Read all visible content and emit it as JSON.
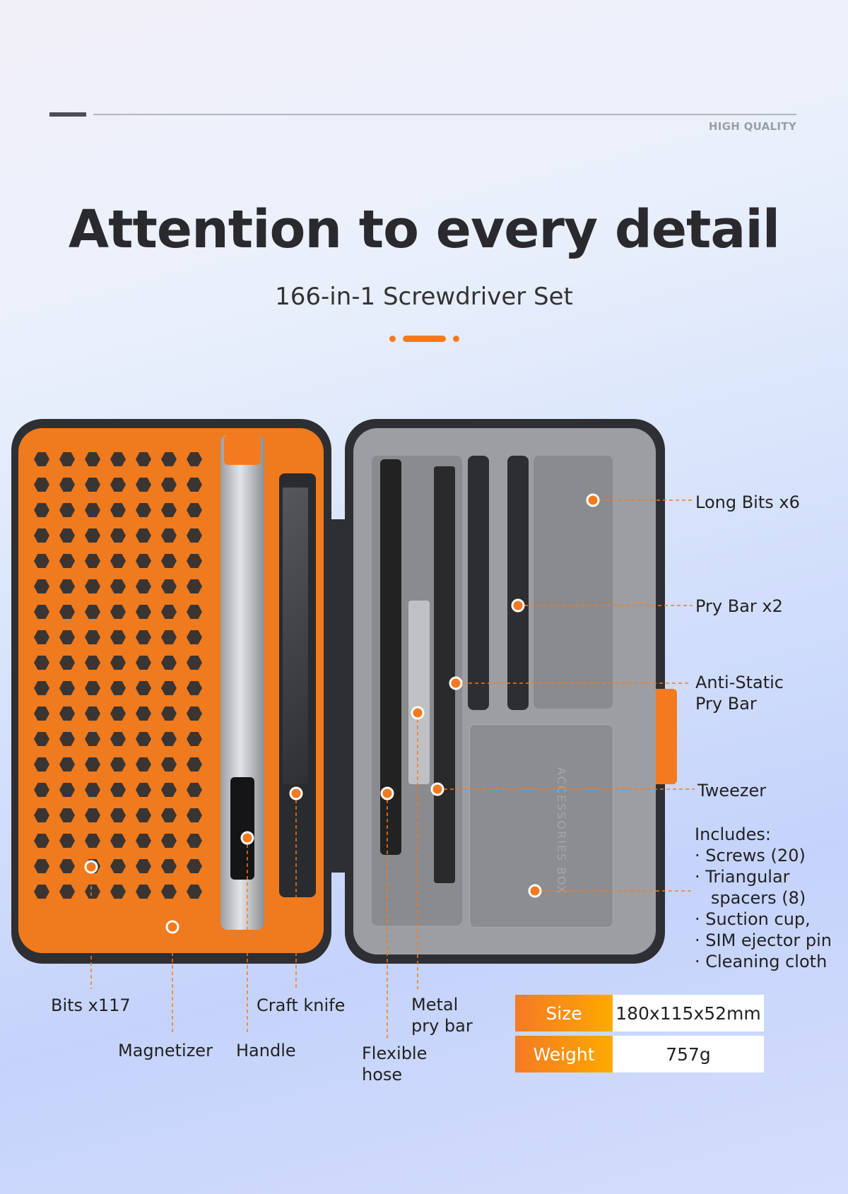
{
  "header": {
    "tag": "HIGH QUALITY",
    "title": "Attention to every detail",
    "subtitle": "166-in-1 Screwdriver Set"
  },
  "colors": {
    "accent": "#f47a1f",
    "case_left": "#f07a1e",
    "case_right": "#9d9ea1",
    "frame": "#2e2f33"
  },
  "callouts": {
    "long_bits": "Long Bits x6",
    "pry_bar": "Pry Bar x2",
    "anti_static_1": "Anti-Static",
    "anti_static_2": "Pry Bar",
    "tweezer": "Tweezer",
    "bits": "Bits x117",
    "magnetizer": "Magnetizer",
    "handle": "Handle",
    "craft_knife": "Craft knife",
    "flexible_1": "Flexible",
    "flexible_2": "hose",
    "metal_1": "Metal",
    "metal_2": "pry bar"
  },
  "includes": {
    "title": "Includes:",
    "items": [
      "· Screws (20)",
      "· Triangular",
      "   spacers (8)",
      "· Suction cup,",
      "· SIM ejector pin",
      "· Cleaning cloth"
    ]
  },
  "specs": [
    {
      "key": "Size",
      "value": "180x115x52mm"
    },
    {
      "key": "Weight",
      "value": "757g"
    }
  ],
  "box_label": "ACCESSORIES BOX"
}
